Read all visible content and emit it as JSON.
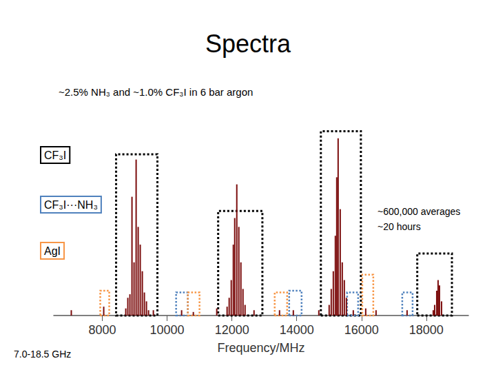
{
  "chart_data": {
    "type": "bar",
    "title": "Spectra",
    "subtitle": "~2.5% NH₃ and ~1.0% CF₃I in 6 bar argon",
    "annotations": [
      "~600,000 averages",
      "~20 hours"
    ],
    "range_note": "7.0-18.5 GHz",
    "xlabel": "Frequency/MHz",
    "x": [
      7042,
      8043,
      8724,
      8787,
      8851,
      8915,
      8979,
      9043,
      9106,
      9170,
      9234,
      9298,
      9362,
      9426,
      9575,
      10447,
      10809,
      11532,
      11851,
      11915,
      11979,
      12043,
      12086,
      12150,
      12213,
      12277,
      12341,
      12405,
      12682,
      13469,
      13895,
      14682,
      15001,
      15065,
      15129,
      15192,
      15235,
      15278,
      15342,
      15405,
      15469,
      15533,
      15746,
      16129,
      16448,
      17406,
      18214,
      18257,
      18321,
      18363,
      18406,
      18470
    ],
    "values": [
      0.03,
      0.05,
      0.04,
      0.1,
      0.12,
      0.67,
      0.3,
      0.88,
      0.5,
      0.4,
      0.25,
      0.13,
      0.08,
      0.03,
      0.03,
      0.03,
      0.02,
      0.04,
      0.05,
      0.1,
      0.2,
      0.4,
      0.55,
      0.74,
      0.5,
      0.3,
      0.15,
      0.06,
      0.03,
      0.03,
      0.03,
      0.03,
      0.06,
      0.15,
      0.25,
      0.45,
      0.78,
      1.0,
      0.6,
      0.3,
      0.2,
      0.1,
      0.03,
      0.04,
      0.03,
      0.03,
      0.03,
      0.06,
      0.14,
      0.2,
      0.17,
      0.08
    ],
    "color": "#7b0c0c",
    "xlim": [
      6500,
      19300
    ],
    "xticks": [
      8000,
      10000,
      12000,
      14000,
      16000,
      18000
    ],
    "ylim": [
      0,
      1.1
    ],
    "tick_labels": "x",
    "grid": false,
    "groups": [
      {
        "name": "CF₃I",
        "color": "#000000"
      },
      {
        "name": "CF₃I···NH₃",
        "color": "#4f81bd"
      },
      {
        "name": "AgI",
        "color": "#f79646"
      }
    ],
    "regions": [
      {
        "group": "CF₃I",
        "x": [
          8425,
          9700
        ],
        "top": 0.91
      },
      {
        "group": "CF₃I",
        "x": [
          11575,
          12940
        ],
        "top": 0.59
      },
      {
        "group": "CF₃I",
        "x": [
          14745,
          15980
        ],
        "top": 1.04
      },
      {
        "group": "CF₃I",
        "x": [
          17720,
          18790
        ],
        "top": 0.35
      },
      {
        "group": "AgI",
        "x": [
          7936,
          8213
        ],
        "top": 0.14
      },
      {
        "group": "CF₃I···NH₃",
        "x": [
          10277,
          10639
        ],
        "top": 0.13
      },
      {
        "group": "AgI",
        "x": [
          10639,
          11000
        ],
        "top": 0.13
      },
      {
        "group": "AgI",
        "x": [
          13320,
          13703
        ],
        "top": 0.13
      },
      {
        "group": "CF₃I···NH₃",
        "x": [
          13767,
          14150
        ],
        "top": 0.14
      },
      {
        "group": "CF₃I···NH₃",
        "x": [
          15555,
          15895
        ],
        "top": 0.13
      },
      {
        "group": "AgI",
        "x": [
          16023,
          16363
        ],
        "top": 0.23
      },
      {
        "group": "CF₃I···NH₃",
        "x": [
          17257,
          17576
        ],
        "top": 0.13
      }
    ]
  }
}
